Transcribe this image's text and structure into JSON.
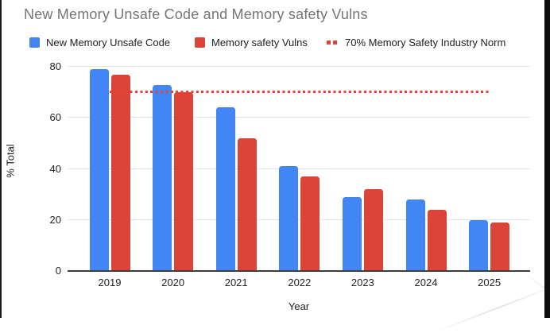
{
  "title": "New Memory Unsafe Code and Memory safety Vulns",
  "legend": {
    "items": [
      {
        "label": "New Memory Unsafe Code",
        "color": "#4285F4",
        "marker": "square"
      },
      {
        "label": "Memory safety Vulns",
        "color": "#DB4437",
        "marker": "square"
      },
      {
        "label": "70% Memory Safety Industry Norm",
        "color": "#EA4335",
        "marker": "dotted-line"
      }
    ]
  },
  "chart_data": {
    "type": "bar",
    "title": "New Memory Unsafe Code and Memory safety Vulns",
    "categories": [
      "2019",
      "2020",
      "2021",
      "2022",
      "2023",
      "2024",
      "2025"
    ],
    "series": [
      {
        "name": "New Memory Unsafe Code",
        "color": "#4285F4",
        "values": [
          79,
          73,
          64,
          41,
          29,
          28,
          20
        ]
      },
      {
        "name": "Memory safety Vulns",
        "color": "#DB4437",
        "values": [
          77,
          70,
          52,
          37,
          32,
          24,
          19
        ]
      }
    ],
    "reference_line": {
      "label": "70% Memory Safety Industry Norm",
      "value": 70,
      "color": "#EA4335",
      "style": "dotted"
    },
    "xlabel": "Year",
    "ylabel": "% Total",
    "ylim": [
      0,
      80
    ],
    "yticks": [
      0,
      20,
      40,
      60,
      80
    ],
    "grid": true,
    "legend_position": "top"
  }
}
